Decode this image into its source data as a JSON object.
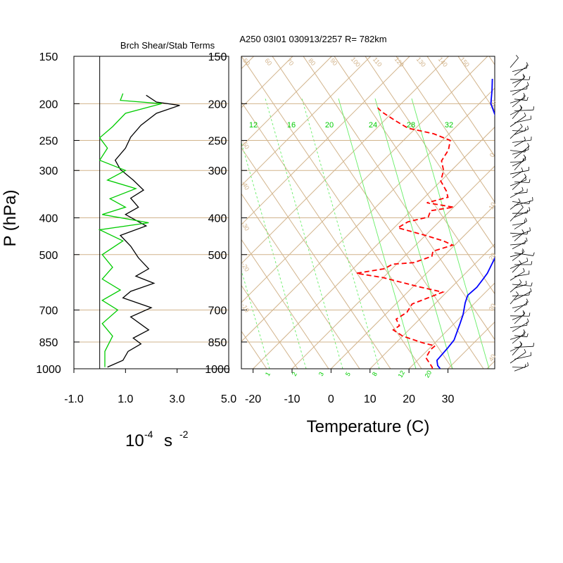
{
  "figure": {
    "left_title": "Brch Shear/Stab Terms",
    "right_title": "A250 03I01 030913/2257 R= 782km",
    "y_label": "P (hPa)",
    "left_x_unit": {
      "base": "10",
      "exp1": "-4",
      "mid": "s",
      "exp2": "-2"
    },
    "right_x_label": "Temperature (C)"
  },
  "chart_data": [
    {
      "type": "line",
      "name": "brch-shear-stab-panel",
      "title": "Brch Shear/Stab Terms",
      "x_ticks": [
        "-1.0",
        "1.0",
        "3.0",
        "5.0"
      ],
      "x_range": [
        -1.0,
        5.0
      ],
      "y_scale": "log",
      "y_range_hpa": [
        1000,
        150
      ],
      "pressure_levels": [
        150,
        200,
        250,
        300,
        400,
        500,
        700,
        850,
        1000
      ],
      "pressure_level_labels": [
        "150",
        "200",
        "250",
        "300",
        "400",
        "500",
        "700",
        "850",
        "1000"
      ],
      "zero_line_x": 0.0,
      "series": [
        {
          "color": "#000000",
          "points": [
            [
              1.8,
              190
            ],
            [
              2.2,
              198
            ],
            [
              3.1,
              202
            ],
            [
              2.2,
              212
            ],
            [
              1.6,
              228
            ],
            [
              1.2,
              245
            ],
            [
              1.0,
              262
            ],
            [
              0.6,
              282
            ],
            [
              0.8,
              298
            ],
            [
              1.3,
              318
            ],
            [
              1.7,
              338
            ],
            [
              1.2,
              355
            ],
            [
              1.5,
              375
            ],
            [
              1.0,
              392
            ],
            [
              1.8,
              420
            ],
            [
              0.8,
              445
            ],
            [
              1.2,
              475
            ],
            [
              1.5,
              510
            ],
            [
              1.9,
              545
            ],
            [
              1.4,
              570
            ],
            [
              2.1,
              595
            ],
            [
              1.2,
              625
            ],
            [
              0.9,
              650
            ],
            [
              2.0,
              690
            ],
            [
              1.2,
              730
            ],
            [
              1.9,
              790
            ],
            [
              1.3,
              830
            ],
            [
              1.6,
              860
            ],
            [
              1.1,
              900
            ],
            [
              0.9,
              950
            ],
            [
              0.3,
              990
            ]
          ]
        },
        {
          "color": "#00cc00",
          "points": [
            [
              0.9,
              188
            ],
            [
              0.8,
              196
            ],
            [
              2.4,
              200
            ],
            [
              1.0,
              212
            ],
            [
              0.5,
              230
            ],
            [
              0.0,
              246
            ],
            [
              0.3,
              262
            ],
            [
              0.0,
              282
            ],
            [
              1.0,
              300
            ],
            [
              0.3,
              318
            ],
            [
              1.4,
              335
            ],
            [
              0.4,
              356
            ],
            [
              1.0,
              375
            ],
            [
              0.1,
              392
            ],
            [
              1.9,
              412
            ],
            [
              0.0,
              430
            ],
            [
              0.9,
              460
            ],
            [
              0.1,
              500
            ],
            [
              0.5,
              540
            ],
            [
              0.1,
              580
            ],
            [
              0.8,
              620
            ],
            [
              0.1,
              660
            ],
            [
              0.7,
              700
            ],
            [
              0.1,
              760
            ],
            [
              0.5,
              820
            ],
            [
              0.2,
              900
            ],
            [
              0.2,
              990
            ]
          ]
        }
      ]
    },
    {
      "type": "line",
      "name": "skewt-temperature-panel",
      "title": "A250 03I01 030913/2257 R= 782km",
      "xlabel": "Temperature (C)",
      "ylabel": "P (hPa)",
      "x_ticks": [
        -20,
        -10,
        0,
        10,
        20,
        30
      ],
      "x_tick_labels": [
        "-20",
        "-10",
        "0",
        "10",
        "20",
        "30"
      ],
      "x_range_at_1000hPa": [
        -23,
        42
      ],
      "y_scale": "log",
      "y_range_hpa": [
        1000,
        150
      ],
      "pressure_levels": [
        150,
        200,
        250,
        300,
        400,
        500,
        700,
        850,
        1000
      ],
      "pressure_level_labels": [
        "150",
        "200",
        "250",
        "300",
        "400",
        "500",
        "700",
        "850",
        "1000"
      ],
      "mixing_ratio_labels_top": [
        "12",
        "16",
        "20",
        "24",
        "28",
        "32"
      ],
      "mixing_ratio_labels_bottom": [
        "1",
        "2",
        "3",
        "5",
        "8",
        "12",
        "20"
      ],
      "theta_labels": [
        "50",
        "60",
        "70",
        "80",
        "90",
        "100",
        "110",
        "120",
        "130",
        "140",
        "150"
      ],
      "theta_e_labels_right": [
        "-10",
        "0",
        "10",
        "20",
        "30",
        "40"
      ],
      "isotherm_labels_left": [
        "-50",
        "-40",
        "-30",
        "-20",
        "-10"
      ],
      "temperature": {
        "color": "#0000ff",
        "points": [
          [
            28,
            1000
          ],
          [
            26.5,
            980
          ],
          [
            25,
            950
          ],
          [
            24.6,
            880
          ],
          [
            24.2,
            840
          ],
          [
            21.5,
            760
          ],
          [
            20,
            720
          ],
          [
            17.5,
            670
          ],
          [
            16.2,
            640
          ],
          [
            16.5,
            610
          ],
          [
            16,
            580
          ],
          [
            15.6,
            560
          ],
          [
            14,
            520
          ],
          [
            12.8,
            490
          ],
          [
            10.5,
            455
          ],
          [
            7.8,
            420
          ],
          [
            5.3,
            390
          ],
          [
            3.0,
            365
          ],
          [
            1.0,
            340
          ],
          [
            -3.5,
            305
          ],
          [
            -7.5,
            280
          ],
          [
            -12,
            258
          ],
          [
            -17,
            237
          ],
          [
            -22,
            218
          ],
          [
            -27,
            200
          ],
          [
            -30,
            185
          ],
          [
            -33,
            172
          ]
        ]
      },
      "dewpoint": {
        "color": "#ff0000",
        "points": [
          [
            26,
            1000
          ],
          [
            25.5,
            990
          ],
          [
            23,
            955
          ],
          [
            21.5,
            935
          ],
          [
            20.6,
            890
          ],
          [
            20.8,
            870
          ],
          [
            17,
            855
          ],
          [
            10,
            820
          ],
          [
            6,
            790
          ],
          [
            6.5,
            770
          ],
          [
            4,
            740
          ],
          [
            5,
            710
          ],
          [
            4.2,
            675
          ],
          [
            9,
            628
          ],
          [
            1.5,
            608
          ],
          [
            -10,
            575
          ],
          [
            -18,
            560
          ],
          [
            -12,
            545
          ],
          [
            -11,
            530
          ],
          [
            -6,
            525
          ],
          [
            -3,
            505
          ],
          [
            -4,
            490
          ],
          [
            -0.5,
            472
          ],
          [
            -4,
            460
          ],
          [
            -10,
            445
          ],
          [
            -19,
            425
          ],
          [
            -18,
            410
          ],
          [
            -14,
            398
          ],
          [
            -15,
            383
          ],
          [
            -10,
            375
          ],
          [
            -18,
            365
          ],
          [
            -14,
            353
          ],
          [
            -16,
            340
          ],
          [
            -20,
            320
          ],
          [
            -22,
            300
          ],
          [
            -25,
            283
          ],
          [
            -26,
            265
          ],
          [
            -28,
            250
          ],
          [
            -34,
            240
          ],
          [
            -42,
            232
          ],
          [
            -47,
            222
          ],
          [
            -53,
            210
          ],
          [
            -55,
            205
          ]
        ]
      },
      "wind_barbs": "present along right edge (one per level from 150 to 1000 hPa)"
    }
  ]
}
